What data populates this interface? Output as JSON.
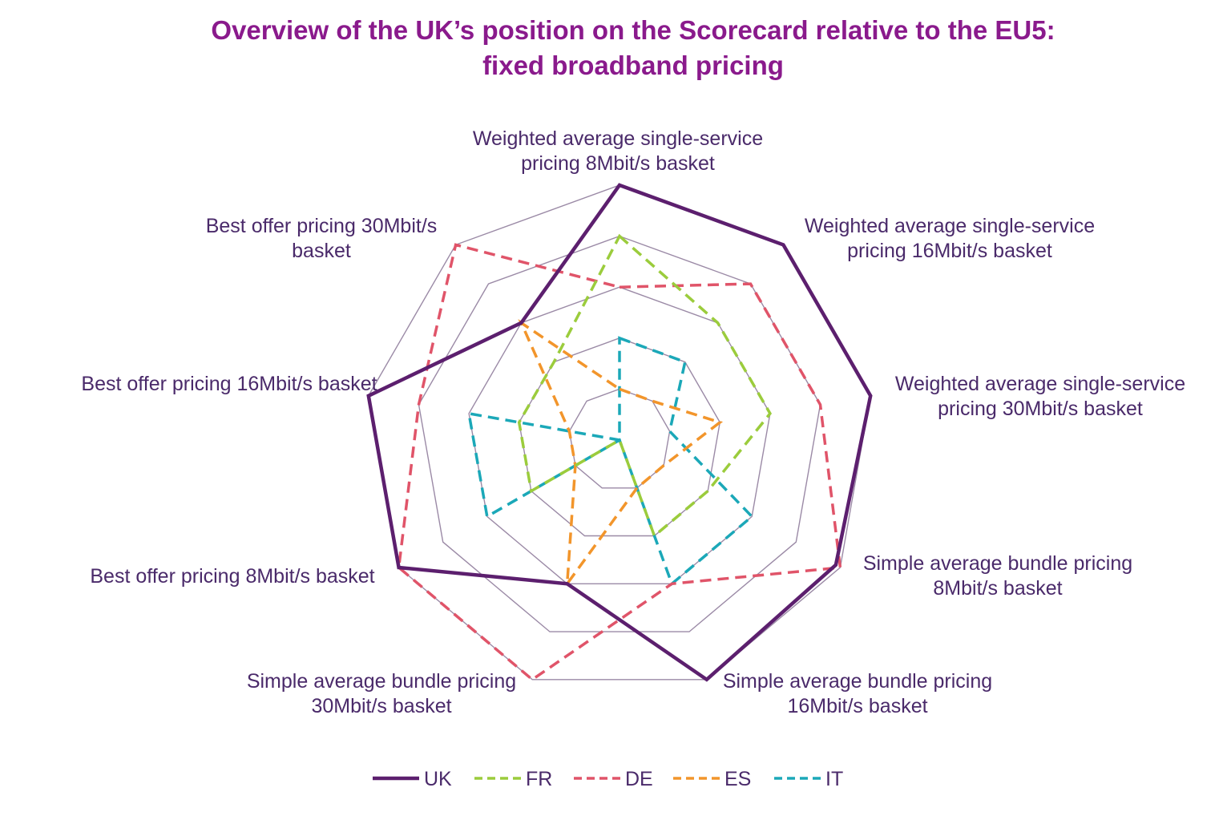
{
  "chart_data": {
    "type": "radar",
    "title": "Overview of the UK’s position on the Scorecard relative to the EU5:",
    "subtitle": "fixed broadband pricing",
    "axes": [
      [
        "Weighted average single-service",
        "pricing 8Mbit/s basket"
      ],
      [
        "Weighted average single-service",
        "pricing 16Mbit/s basket"
      ],
      [
        "Weighted average single-service",
        "pricing 30Mbit/s basket"
      ],
      [
        "Simple average bundle pricing",
        "8Mbit/s basket"
      ],
      [
        "Simple average bundle pricing",
        "16Mbit/s basket"
      ],
      [
        "Simple average bundle pricing",
        "30Mbit/s basket"
      ],
      [
        "Best offer pricing 8Mbit/s basket"
      ],
      [
        "Best offer pricing 16Mbit/s basket",
        ""
      ],
      [
        "Best offer pricing 30Mbit/s",
        "basket"
      ]
    ],
    "rlim": [
      0,
      5
    ],
    "rings": 5,
    "grid": true,
    "legend_position": "bottom",
    "series": [
      {
        "name": "UK",
        "color": "#5c1f6e",
        "dash": "solid",
        "values": [
          5,
          5,
          5,
          4.9,
          5,
          3,
          5,
          5,
          3
        ]
      },
      {
        "name": "FR",
        "color": "#9bcc3c",
        "dash": "dashed",
        "values": [
          4,
          3,
          3,
          2,
          2,
          0,
          2,
          2,
          2
        ]
      },
      {
        "name": "DE",
        "color": "#e05469",
        "dash": "dashed",
        "values": [
          3,
          4,
          4,
          5,
          3,
          5,
          5,
          4,
          5
        ]
      },
      {
        "name": "ES",
        "color": "#f2952b",
        "dash": "dashed",
        "values": [
          1,
          1,
          2,
          1,
          1,
          3,
          1,
          1,
          3
        ]
      },
      {
        "name": "IT",
        "color": "#1ba8b8",
        "dash": "dashed",
        "values": [
          2,
          2,
          1,
          3,
          3,
          0,
          3,
          3,
          0
        ]
      }
    ]
  }
}
